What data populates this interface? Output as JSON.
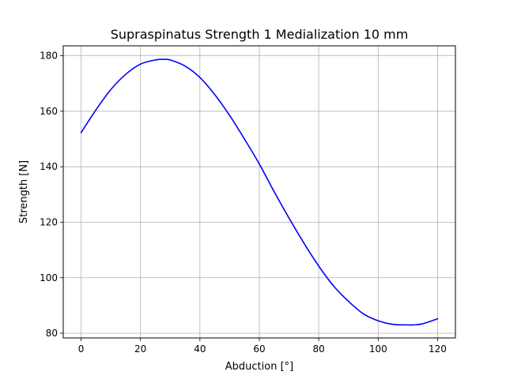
{
  "chart_data": {
    "type": "line",
    "title": "Supraspinatus Strength 1 Medialization 10 mm",
    "xlabel": "Abduction [°]",
    "ylabel": "Strength [N]",
    "xlim": [
      -6,
      126
    ],
    "ylim": [
      78.3,
      183.6
    ],
    "xticks": [
      0,
      20,
      40,
      60,
      80,
      100,
      120
    ],
    "yticks": [
      80,
      100,
      120,
      140,
      160,
      180
    ],
    "grid": true,
    "legend": "none",
    "series": [
      {
        "color": "#0000ff",
        "x": [
          0,
          5,
          10,
          15,
          20,
          25,
          28,
          30,
          35,
          40,
          45,
          50,
          55,
          60,
          65,
          70,
          75,
          80,
          85,
          90,
          95,
          100,
          105,
          110,
          112,
          115,
          120
        ],
        "y": [
          152.3,
          160.5,
          167.8,
          173.3,
          177.0,
          178.5,
          178.7,
          178.5,
          176.3,
          172.2,
          166.0,
          158.5,
          150.0,
          141.0,
          131.0,
          121.5,
          112.5,
          104.2,
          97.0,
          91.5,
          87.0,
          84.5,
          83.2,
          83.0,
          83.0,
          83.4,
          85.2
        ]
      }
    ],
    "colors": {
      "grid": "#b0b0b0",
      "axes": "#000000",
      "background": "#ffffff"
    }
  }
}
